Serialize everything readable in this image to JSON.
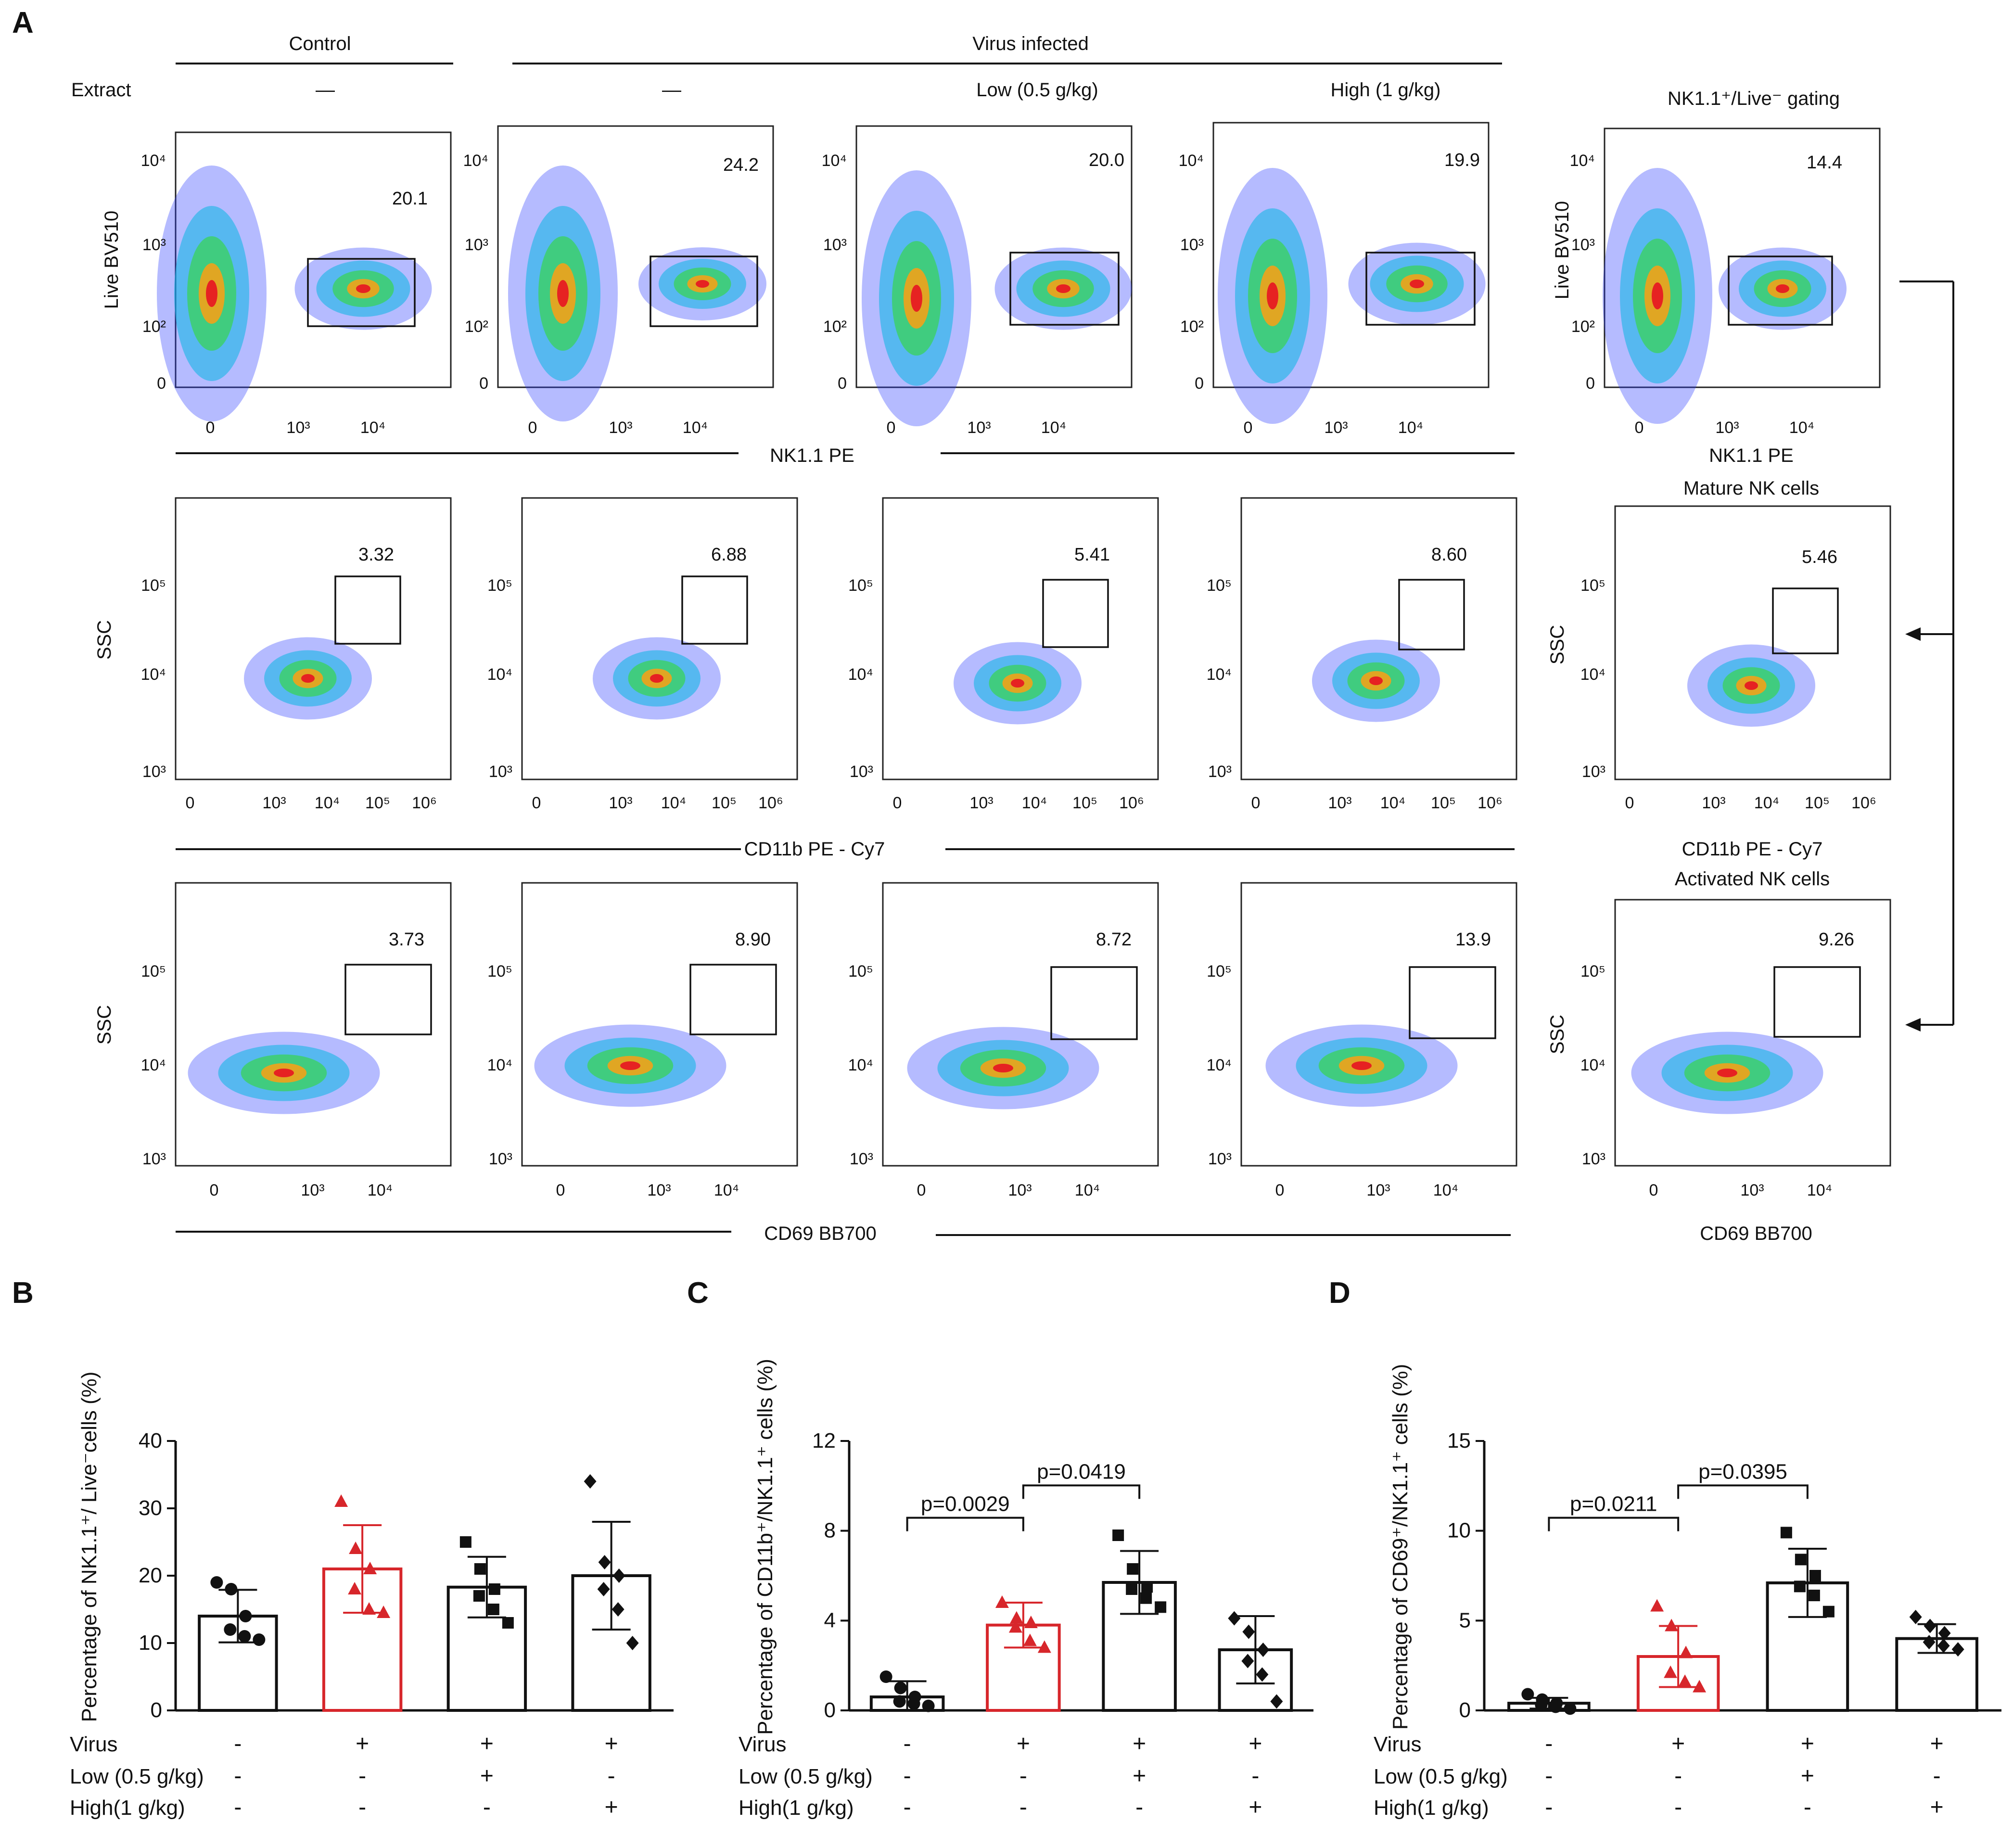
{
  "panel_letters": {
    "a": "A",
    "b": "B",
    "c": "C",
    "d": "D"
  },
  "header": {
    "control_label": "Control",
    "virus_label": "Virus infected",
    "extract_label": "Extract",
    "dose_labels": [
      "—",
      "—",
      "Low (0.5 g/kg)",
      "High (1 g/kg)"
    ],
    "gating_title": "NK1.1⁺/Live⁻ gating"
  },
  "flow": {
    "row_titles": [
      "",
      "Mature NK cells",
      "Activated NK cells"
    ],
    "shared_xlabels": [
      "NK1.1  PE",
      "CD11b  PE - Cy7",
      "CD69  BB700"
    ],
    "ylabels": [
      "Live  BV510",
      "SSC",
      "SSC"
    ],
    "row1_ticks": {
      "x": [
        "0",
        "10³",
        "10⁴"
      ],
      "y": [
        "10⁴",
        "10³",
        "10²",
        "0"
      ]
    },
    "row2_ticks": {
      "x": [
        "0",
        "10³",
        "10⁴",
        "10⁵",
        "10⁶"
      ],
      "y": [
        "10⁵",
        "10⁴",
        "10³"
      ]
    },
    "row3_ticks": {
      "x": [
        "0",
        "10³",
        "10⁴"
      ],
      "y": [
        "10⁵",
        "10⁴",
        "10³"
      ]
    },
    "gate_percentages": [
      [
        "20.1",
        "24.2",
        "20.0",
        "19.9",
        "14.4"
      ],
      [
        "3.32",
        "6.88",
        "5.41",
        "8.60",
        "5.46"
      ],
      [
        "3.73",
        "8.90",
        "8.72",
        "13.9",
        "9.26"
      ]
    ]
  },
  "conditions": {
    "row_labels": [
      "Virus",
      "Low (0.5 g/kg)",
      "High(1 g/kg)"
    ],
    "signs": [
      [
        "-",
        "+",
        "+",
        "+"
      ],
      [
        "-",
        "-",
        "+",
        "-"
      ],
      [
        "-",
        "-",
        "-",
        "+"
      ]
    ]
  },
  "colors": {
    "red": "#d7262b",
    "black": "#111111"
  },
  "chart_data": [
    {
      "type": "bar",
      "panel": "B",
      "ylabel": "Percentage of NK1.1⁺/ Live⁻cells (%)",
      "ylim": [
        0,
        40
      ],
      "yticks": [
        0,
        10,
        20,
        30,
        40
      ],
      "categories": [
        "Control",
        "Virus",
        "Virus + Low",
        "Virus + High"
      ],
      "values": [
        14.0,
        21.0,
        18.3,
        20.0
      ],
      "sd": [
        3.9,
        6.5,
        4.5,
        8.0
      ],
      "points": [
        [
          19,
          18,
          14,
          12,
          11,
          10.5
        ],
        [
          31,
          24,
          21,
          18,
          15,
          14.5
        ],
        [
          25,
          21,
          18,
          17,
          15,
          13
        ],
        [
          34,
          22,
          20,
          18,
          15,
          10
        ]
      ],
      "markers": [
        "circle",
        "triangle",
        "square",
        "diamond"
      ],
      "bar_colors": [
        "#111111",
        "#d7262b",
        "#111111",
        "#111111"
      ],
      "pvalues": []
    },
    {
      "type": "bar",
      "panel": "C",
      "ylabel": "Percentage of CD11b⁺/NK1.1⁺ cells (%)",
      "ylim": [
        0,
        12
      ],
      "yticks": [
        0,
        4,
        8,
        12
      ],
      "categories": [
        "Control",
        "Virus",
        "Virus + Low",
        "Virus + High"
      ],
      "values": [
        0.6,
        3.8,
        5.7,
        2.7
      ],
      "sd": [
        0.7,
        1.0,
        1.4,
        1.5
      ],
      "points": [
        [
          1.5,
          1.0,
          0.6,
          0.4,
          0.3,
          0.2
        ],
        [
          4.8,
          4.1,
          3.9,
          3.7,
          3.1,
          2.8
        ],
        [
          7.8,
          6.3,
          5.5,
          5.4,
          5.0,
          4.6
        ],
        [
          4.1,
          3.5,
          2.7,
          2.2,
          1.6,
          0.4
        ]
      ],
      "markers": [
        "circle",
        "triangle",
        "square",
        "diamond"
      ],
      "bar_colors": [
        "#111111",
        "#d7262b",
        "#111111",
        "#111111"
      ],
      "pvalues": [
        {
          "from": 0,
          "to": 1,
          "label": "p=0.0029"
        },
        {
          "from": 1,
          "to": 2,
          "label": "p=0.0419"
        }
      ]
    },
    {
      "type": "bar",
      "panel": "D",
      "ylabel": "Percentage of CD69⁺/NK1.1⁺  cells (%)",
      "ylim": [
        0,
        15
      ],
      "yticks": [
        0,
        5,
        10,
        15
      ],
      "categories": [
        "Control",
        "Virus",
        "Virus + Low",
        "Virus + High"
      ],
      "values": [
        0.4,
        3.0,
        7.1,
        4.0
      ],
      "sd": [
        0.3,
        1.7,
        1.9,
        0.8
      ],
      "points": [
        [
          0.9,
          0.6,
          0.4,
          0.3,
          0.2,
          0.1
        ],
        [
          5.8,
          4.7,
          3.2,
          2.1,
          1.6,
          1.3
        ],
        [
          9.9,
          8.4,
          7.5,
          6.9,
          6.4,
          5.5
        ],
        [
          5.2,
          4.7,
          4.3,
          3.8,
          3.6,
          3.4
        ]
      ],
      "markers": [
        "circle",
        "triangle",
        "square",
        "diamond"
      ],
      "bar_colors": [
        "#111111",
        "#d7262b",
        "#111111",
        "#111111"
      ],
      "pvalues": [
        {
          "from": 0,
          "to": 1,
          "label": "p=0.0211"
        },
        {
          "from": 1,
          "to": 2,
          "label": "p=0.0395"
        }
      ]
    }
  ]
}
